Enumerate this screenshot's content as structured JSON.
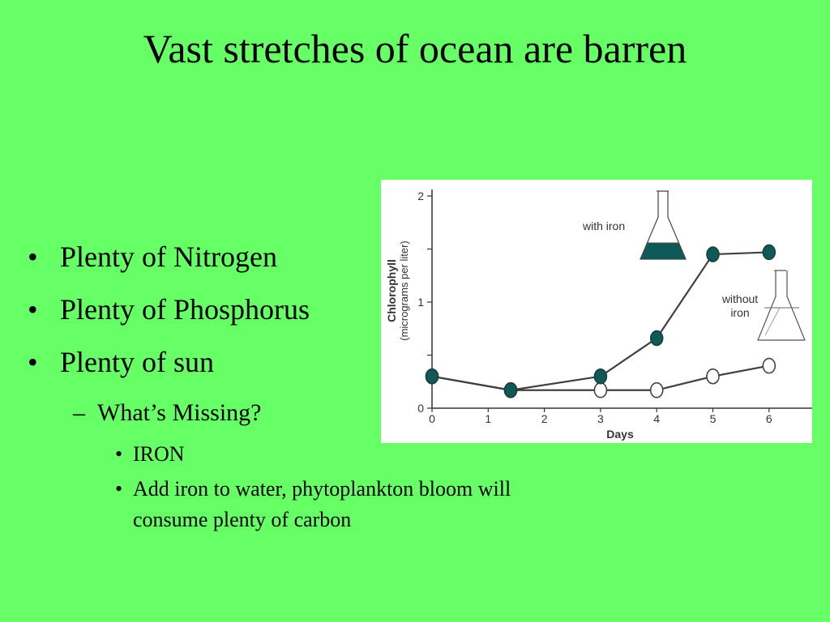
{
  "slide": {
    "title": "Vast stretches of ocean are barren",
    "bullets": [
      "Plenty of Nitrogen",
      "Plenty of Phosphorus",
      "Plenty of sun"
    ],
    "sub_bullet": "What’s Missing?",
    "sub_sub_bullets": [
      "IRON",
      "Add iron to water, phytoplankton bloom will consume plenty of carbon"
    ]
  },
  "chart_data": {
    "type": "line",
    "xlabel": "Days",
    "ylabel": "Chlorophyll",
    "ylabel_sub": "(micrograms per liter)",
    "x_ticks": [
      "0",
      "1",
      "2",
      "3",
      "4",
      "5",
      "6"
    ],
    "y_ticks": [
      "0",
      "1",
      "2"
    ],
    "xlim": [
      0,
      6.7
    ],
    "ylim": [
      0,
      2
    ],
    "series": [
      {
        "name": "with iron",
        "marker": "filled",
        "x": [
          0,
          1.4,
          3,
          4,
          5,
          6
        ],
        "y": [
          0.3,
          0.17,
          0.3,
          0.66,
          1.45,
          1.47
        ]
      },
      {
        "name": "without iron",
        "marker": "open",
        "x": [
          0,
          1.4,
          3,
          4,
          5,
          6
        ],
        "y": [
          0.3,
          0.17,
          0.17,
          0.17,
          0.3,
          0.4
        ]
      }
    ],
    "annotations": {
      "with_iron": "with iron",
      "without_iron_line1": "without",
      "without_iron_line2": "iron"
    },
    "colors": {
      "with_iron_fill": "#0f5a59",
      "line": "#404040",
      "open_marker_fill": "#ffffff"
    }
  }
}
